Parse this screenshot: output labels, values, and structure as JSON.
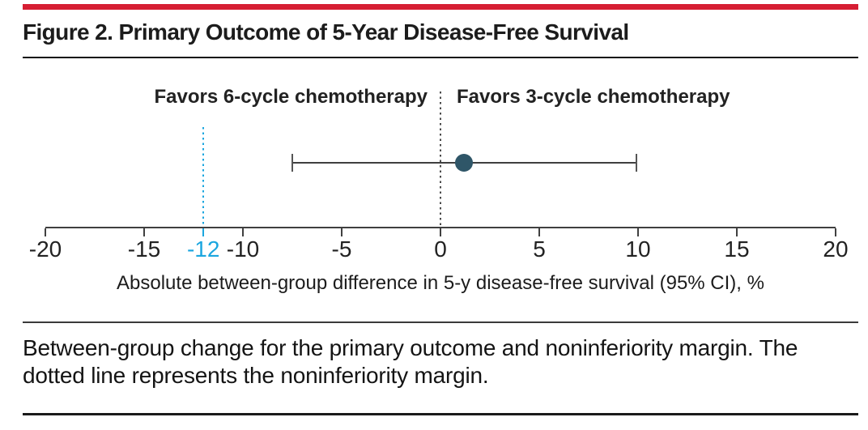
{
  "figure": {
    "title": "Figure 2. Primary Outcome of 5-Year Disease-Free Survival"
  },
  "chart_data": {
    "type": "scatter",
    "title": "Primary Outcome of 5-Year Disease-Free Survival",
    "xlabel": "Absolute between-group difference in 5-y disease-free survival (95% CI), %",
    "xlim": [
      -20,
      20
    ],
    "ticks": [
      -20,
      -15,
      -12,
      -10,
      -5,
      0,
      5,
      10,
      15,
      20
    ],
    "highlight_tick": -12,
    "left_label": "Favors 6-cycle chemotherapy",
    "right_label": "Favors 3-cycle chemotherapy",
    "point_estimate": 1.2,
    "ci_lower": -7.5,
    "ci_upper": 9.9,
    "reference_line": 0,
    "noninferiority_margin": -12,
    "grid": false,
    "legend_position": "none",
    "colors": {
      "accent_red": "#d61e33",
      "margin_blue": "#1ba6df",
      "point_fill": "#2f5668",
      "line_dark": "#404040"
    }
  },
  "caption": {
    "text": "Between-group change for the primary outcome and noninferiority margin. The dotted line represents the noninferiority margin."
  }
}
